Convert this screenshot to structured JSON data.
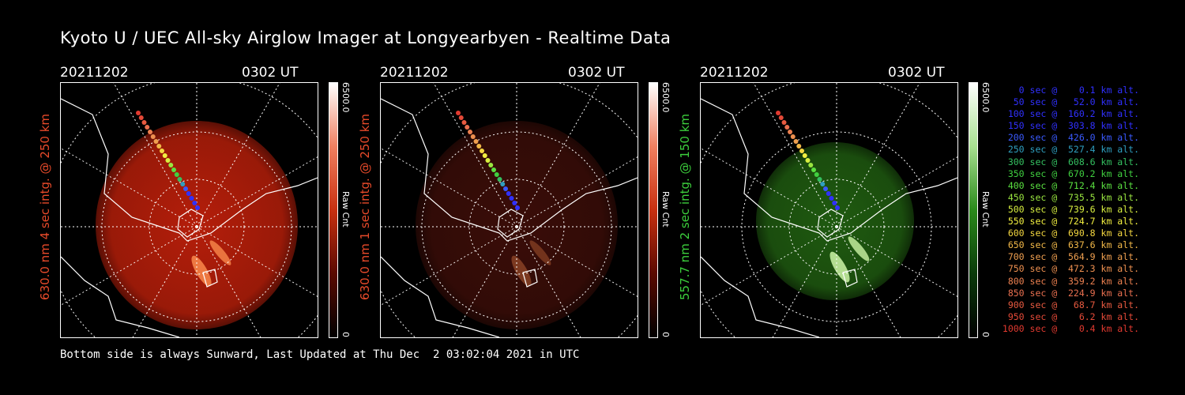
{
  "title": "Kyoto U / UEC All-sky Airglow Imager at Longyearbyen - Realtime Data",
  "footer": "Bottom side is always Sunward, Last Updated at Thu Dec  2 03:02:04 2021 in UTC",
  "panels": [
    {
      "date": "20211202",
      "time": "0302 UT",
      "ylabel": "630.0 nm 4 sec intg. @ 250 km",
      "cbar_max": "6500.0",
      "cbar_unit": "Raw Cnt",
      "cbar_min": "0",
      "color": "#e84a2a",
      "tint": "#b41e0a"
    },
    {
      "date": "20211202",
      "time": "0302 UT",
      "ylabel": "630.0 nm 1 sec intg. @ 250 km",
      "cbar_max": "6500.0",
      "cbar_unit": "Raw Cnt",
      "cbar_min": "0",
      "color": "#e84a2a",
      "tint": "#3a0d08"
    },
    {
      "date": "20211202",
      "time": "0302 UT",
      "ylabel": "557.7 nm 2 sec intg. @ 150 km",
      "cbar_max": "6500.0",
      "cbar_unit": "Raw Cnt",
      "cbar_min": "0",
      "color": "#3ccf3c",
      "tint": "#1f5a10"
    }
  ],
  "legend": [
    {
      "text": "   0 sec @    0.1 km alt.",
      "color": "#3030ff"
    },
    {
      "text": "  50 sec @   52.0 km alt.",
      "color": "#3030ff"
    },
    {
      "text": " 100 sec @  160.2 km alt.",
      "color": "#3030ff"
    },
    {
      "text": " 150 sec @  303.8 km alt.",
      "color": "#3030ff"
    },
    {
      "text": " 200 sec @  426.0 km alt.",
      "color": "#3a5aff"
    },
    {
      "text": " 250 sec @  527.4 km alt.",
      "color": "#2f9fc0"
    },
    {
      "text": " 300 sec @  608.6 km alt.",
      "color": "#34c060"
    },
    {
      "text": " 350 sec @  670.2 km alt.",
      "color": "#40d040"
    },
    {
      "text": " 400 sec @  712.4 km alt.",
      "color": "#5ae040"
    },
    {
      "text": " 450 sec @  735.5 km alt.",
      "color": "#9ae640"
    },
    {
      "text": " 500 sec @  739.6 km alt.",
      "color": "#d8ef40"
    },
    {
      "text": " 550 sec @  724.7 km alt.",
      "color": "#f3f040"
    },
    {
      "text": " 600 sec @  690.8 km alt.",
      "color": "#f5d840"
    },
    {
      "text": " 650 sec @  637.6 km alt.",
      "color": "#f2b848"
    },
    {
      "text": " 700 sec @  564.9 km alt.",
      "color": "#f0a050"
    },
    {
      "text": " 750 sec @  472.3 km alt.",
      "color": "#ee9050"
    },
    {
      "text": " 800 sec @  359.2 km alt.",
      "color": "#ec8050"
    },
    {
      "text": " 850 sec @  224.9 km alt.",
      "color": "#ea7050"
    },
    {
      "text": " 900 sec @   68.7 km alt.",
      "color": "#e85a40"
    },
    {
      "text": " 950 sec @    6.2 km alt.",
      "color": "#e54a38"
    },
    {
      "text": "1000 sec @    0.4 km alt.",
      "color": "#e23a30"
    }
  ]
}
